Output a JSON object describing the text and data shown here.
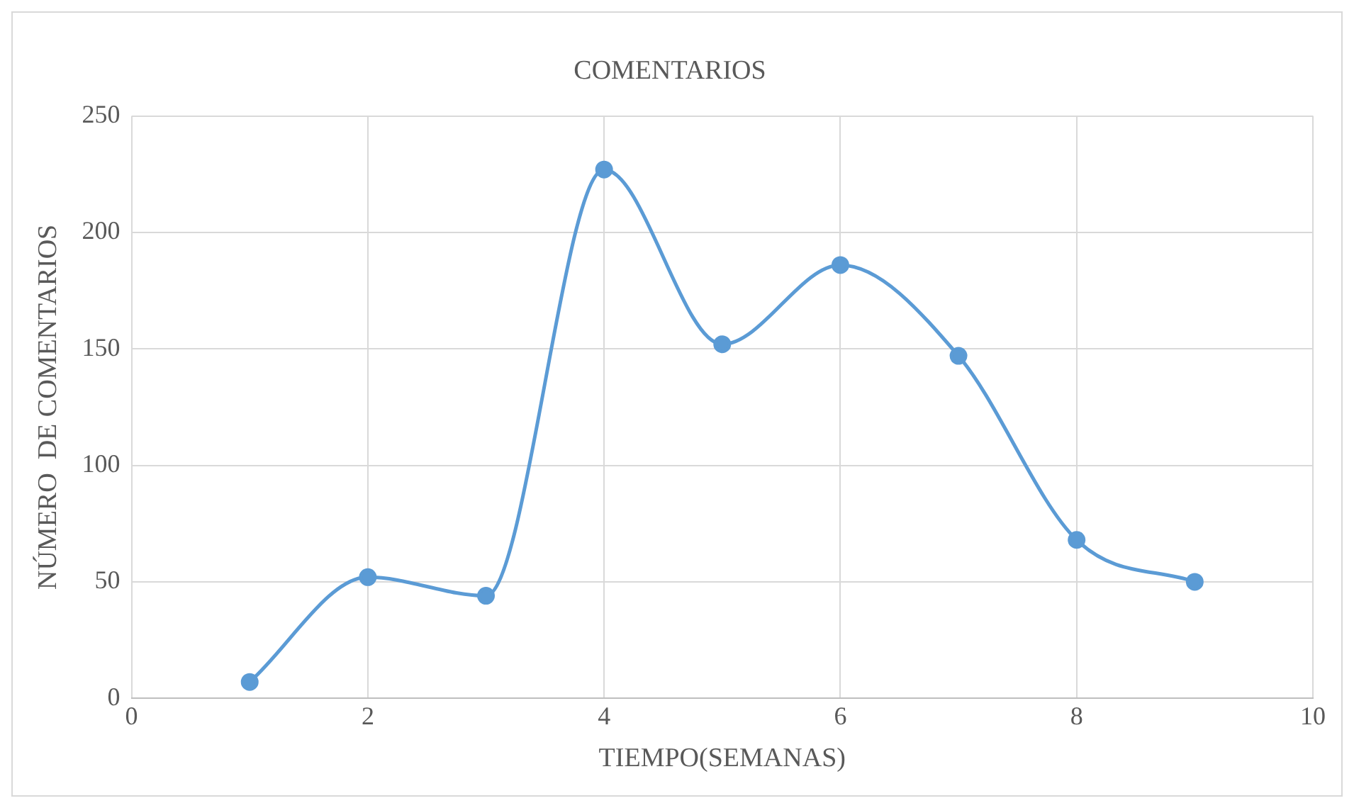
{
  "chart_data": {
    "type": "line",
    "title": "COMENTARIOS",
    "xlabel": "TIEMPO(SEMANAS)",
    "ylabel": "NÚMERO  DE COMENTARIOS",
    "x": [
      1,
      2,
      3,
      4,
      5,
      6,
      7,
      8,
      9
    ],
    "series": [
      {
        "color": "#5b9bd5",
        "values": [
          7,
          52,
          44,
          227,
          152,
          186,
          147,
          68,
          50
        ]
      }
    ],
    "xlim": [
      0,
      10
    ],
    "xticks": [
      0,
      2,
      4,
      6,
      8,
      10
    ],
    "ylim": [
      0,
      250
    ],
    "yticks": [
      0,
      50,
      100,
      150,
      200,
      250
    ],
    "grid": true,
    "legend": false,
    "marker": "circle",
    "line_style": "solid"
  }
}
